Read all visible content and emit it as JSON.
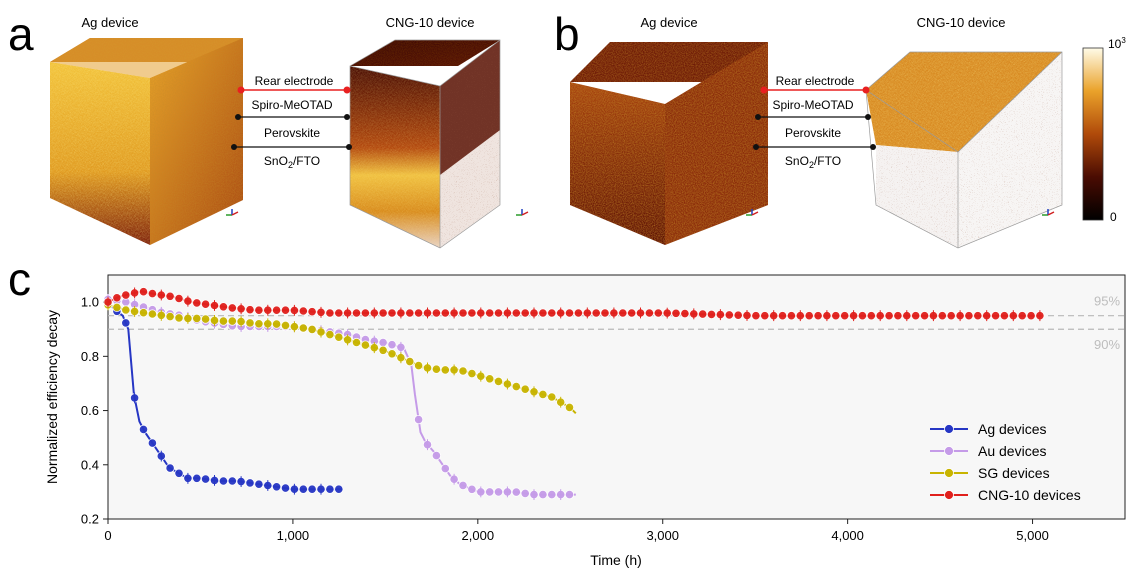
{
  "panel_a": {
    "letter": "a",
    "left_title": "Ag device",
    "right_title": "CNG-10 device",
    "layers": [
      "Rear electrode",
      "Spiro-MeOTAD",
      "Perovskite",
      "SnO2/FTO"
    ]
  },
  "panel_b": {
    "letter": "b",
    "left_title": "Ag device",
    "right_title": "CNG-10 device",
    "layers": [
      "Rear electrode",
      "Spiro-MeOTAD",
      "Perovskite",
      "SnO2/FTO"
    ]
  },
  "colorbar": {
    "max_label": "10",
    "max_exp": "3",
    "min_label": "0"
  },
  "panel_c": {
    "letter": "c"
  },
  "colors": {
    "ag": "#2636c4",
    "au": "#c59be8",
    "sg": "#c8b400",
    "cng": "#e0201c",
    "rear_line": "#e82020",
    "ref_line": "#b8b8b8",
    "ref_text": "#bdbdbd"
  },
  "chart_data": {
    "type": "line",
    "xlabel": "Time (h)",
    "ylabel": "Normalized efficiency decay",
    "xlim": [
      0,
      5500
    ],
    "ylim": [
      0.2,
      1.1
    ],
    "xticks": [
      0,
      1000,
      2000,
      3000,
      4000,
      5000
    ],
    "xtick_labels": [
      "0",
      "1,000",
      "2,000",
      "3,000",
      "4,000",
      "5,000"
    ],
    "yticks": [
      0.2,
      0.4,
      0.6,
      0.8,
      1.0
    ],
    "ytick_labels": [
      "0.2",
      "0.4",
      "0.6",
      "0.8",
      "1.0"
    ],
    "reference_lines": [
      {
        "y": 0.95,
        "label": "95%"
      },
      {
        "y": 0.9,
        "label": "90%"
      }
    ],
    "legend_position": "bottom-right",
    "grid": false,
    "series": [
      {
        "name": "Ag devices",
        "key": "ag",
        "points": [
          [
            0,
            1.0
          ],
          [
            40,
            0.97
          ],
          [
            80,
            0.95
          ],
          [
            110,
            0.9
          ],
          [
            140,
            0.66
          ],
          [
            170,
            0.56
          ],
          [
            200,
            0.52
          ],
          [
            240,
            0.48
          ],
          [
            280,
            0.44
          ],
          [
            330,
            0.39
          ],
          [
            380,
            0.37
          ],
          [
            430,
            0.35
          ],
          [
            500,
            0.35
          ],
          [
            600,
            0.34
          ],
          [
            700,
            0.34
          ],
          [
            800,
            0.33
          ],
          [
            900,
            0.32
          ],
          [
            1000,
            0.31
          ],
          [
            1100,
            0.31
          ],
          [
            1200,
            0.31
          ],
          [
            1270,
            0.31
          ]
        ]
      },
      {
        "name": "Au devices",
        "key": "au",
        "points": [
          [
            0,
            1.01
          ],
          [
            100,
            1.0
          ],
          [
            200,
            0.98
          ],
          [
            300,
            0.96
          ],
          [
            400,
            0.95
          ],
          [
            500,
            0.93
          ],
          [
            600,
            0.92
          ],
          [
            700,
            0.91
          ],
          [
            800,
            0.91
          ],
          [
            900,
            0.91
          ],
          [
            1000,
            0.91
          ],
          [
            1100,
            0.9
          ],
          [
            1200,
            0.89
          ],
          [
            1300,
            0.88
          ],
          [
            1400,
            0.86
          ],
          [
            1500,
            0.85
          ],
          [
            1600,
            0.83
          ],
          [
            1640,
            0.77
          ],
          [
            1660,
            0.66
          ],
          [
            1690,
            0.52
          ],
          [
            1720,
            0.48
          ],
          [
            1760,
            0.45
          ],
          [
            1800,
            0.41
          ],
          [
            1850,
            0.36
          ],
          [
            1900,
            0.33
          ],
          [
            2000,
            0.3
          ],
          [
            2100,
            0.3
          ],
          [
            2200,
            0.3
          ],
          [
            2300,
            0.29
          ],
          [
            2400,
            0.29
          ],
          [
            2500,
            0.29
          ],
          [
            2530,
            0.29
          ]
        ]
      },
      {
        "name": "SG devices",
        "key": "sg",
        "points": [
          [
            0,
            0.99
          ],
          [
            100,
            0.97
          ],
          [
            200,
            0.96
          ],
          [
            300,
            0.95
          ],
          [
            400,
            0.94
          ],
          [
            500,
            0.94
          ],
          [
            600,
            0.93
          ],
          [
            700,
            0.93
          ],
          [
            800,
            0.92
          ],
          [
            900,
            0.92
          ],
          [
            1000,
            0.91
          ],
          [
            1100,
            0.9
          ],
          [
            1200,
            0.88
          ],
          [
            1300,
            0.86
          ],
          [
            1400,
            0.84
          ],
          [
            1500,
            0.82
          ],
          [
            1600,
            0.79
          ],
          [
            1700,
            0.76
          ],
          [
            1800,
            0.75
          ],
          [
            1900,
            0.75
          ],
          [
            2000,
            0.73
          ],
          [
            2100,
            0.71
          ],
          [
            2200,
            0.69
          ],
          [
            2300,
            0.67
          ],
          [
            2400,
            0.65
          ],
          [
            2500,
            0.61
          ],
          [
            2530,
            0.59
          ]
        ]
      },
      {
        "name": "CNG-10 devices",
        "key": "cng",
        "points": [
          [
            0,
            1.0
          ],
          [
            60,
            1.02
          ],
          [
            120,
            1.03
          ],
          [
            180,
            1.04
          ],
          [
            250,
            1.03
          ],
          [
            350,
            1.02
          ],
          [
            450,
            1.0
          ],
          [
            550,
            0.99
          ],
          [
            650,
            0.98
          ],
          [
            800,
            0.97
          ],
          [
            1000,
            0.97
          ],
          [
            1200,
            0.96
          ],
          [
            1500,
            0.96
          ],
          [
            2000,
            0.96
          ],
          [
            2500,
            0.96
          ],
          [
            3000,
            0.96
          ],
          [
            3500,
            0.95
          ],
          [
            4000,
            0.95
          ],
          [
            4500,
            0.95
          ],
          [
            5050,
            0.95
          ]
        ]
      }
    ]
  }
}
